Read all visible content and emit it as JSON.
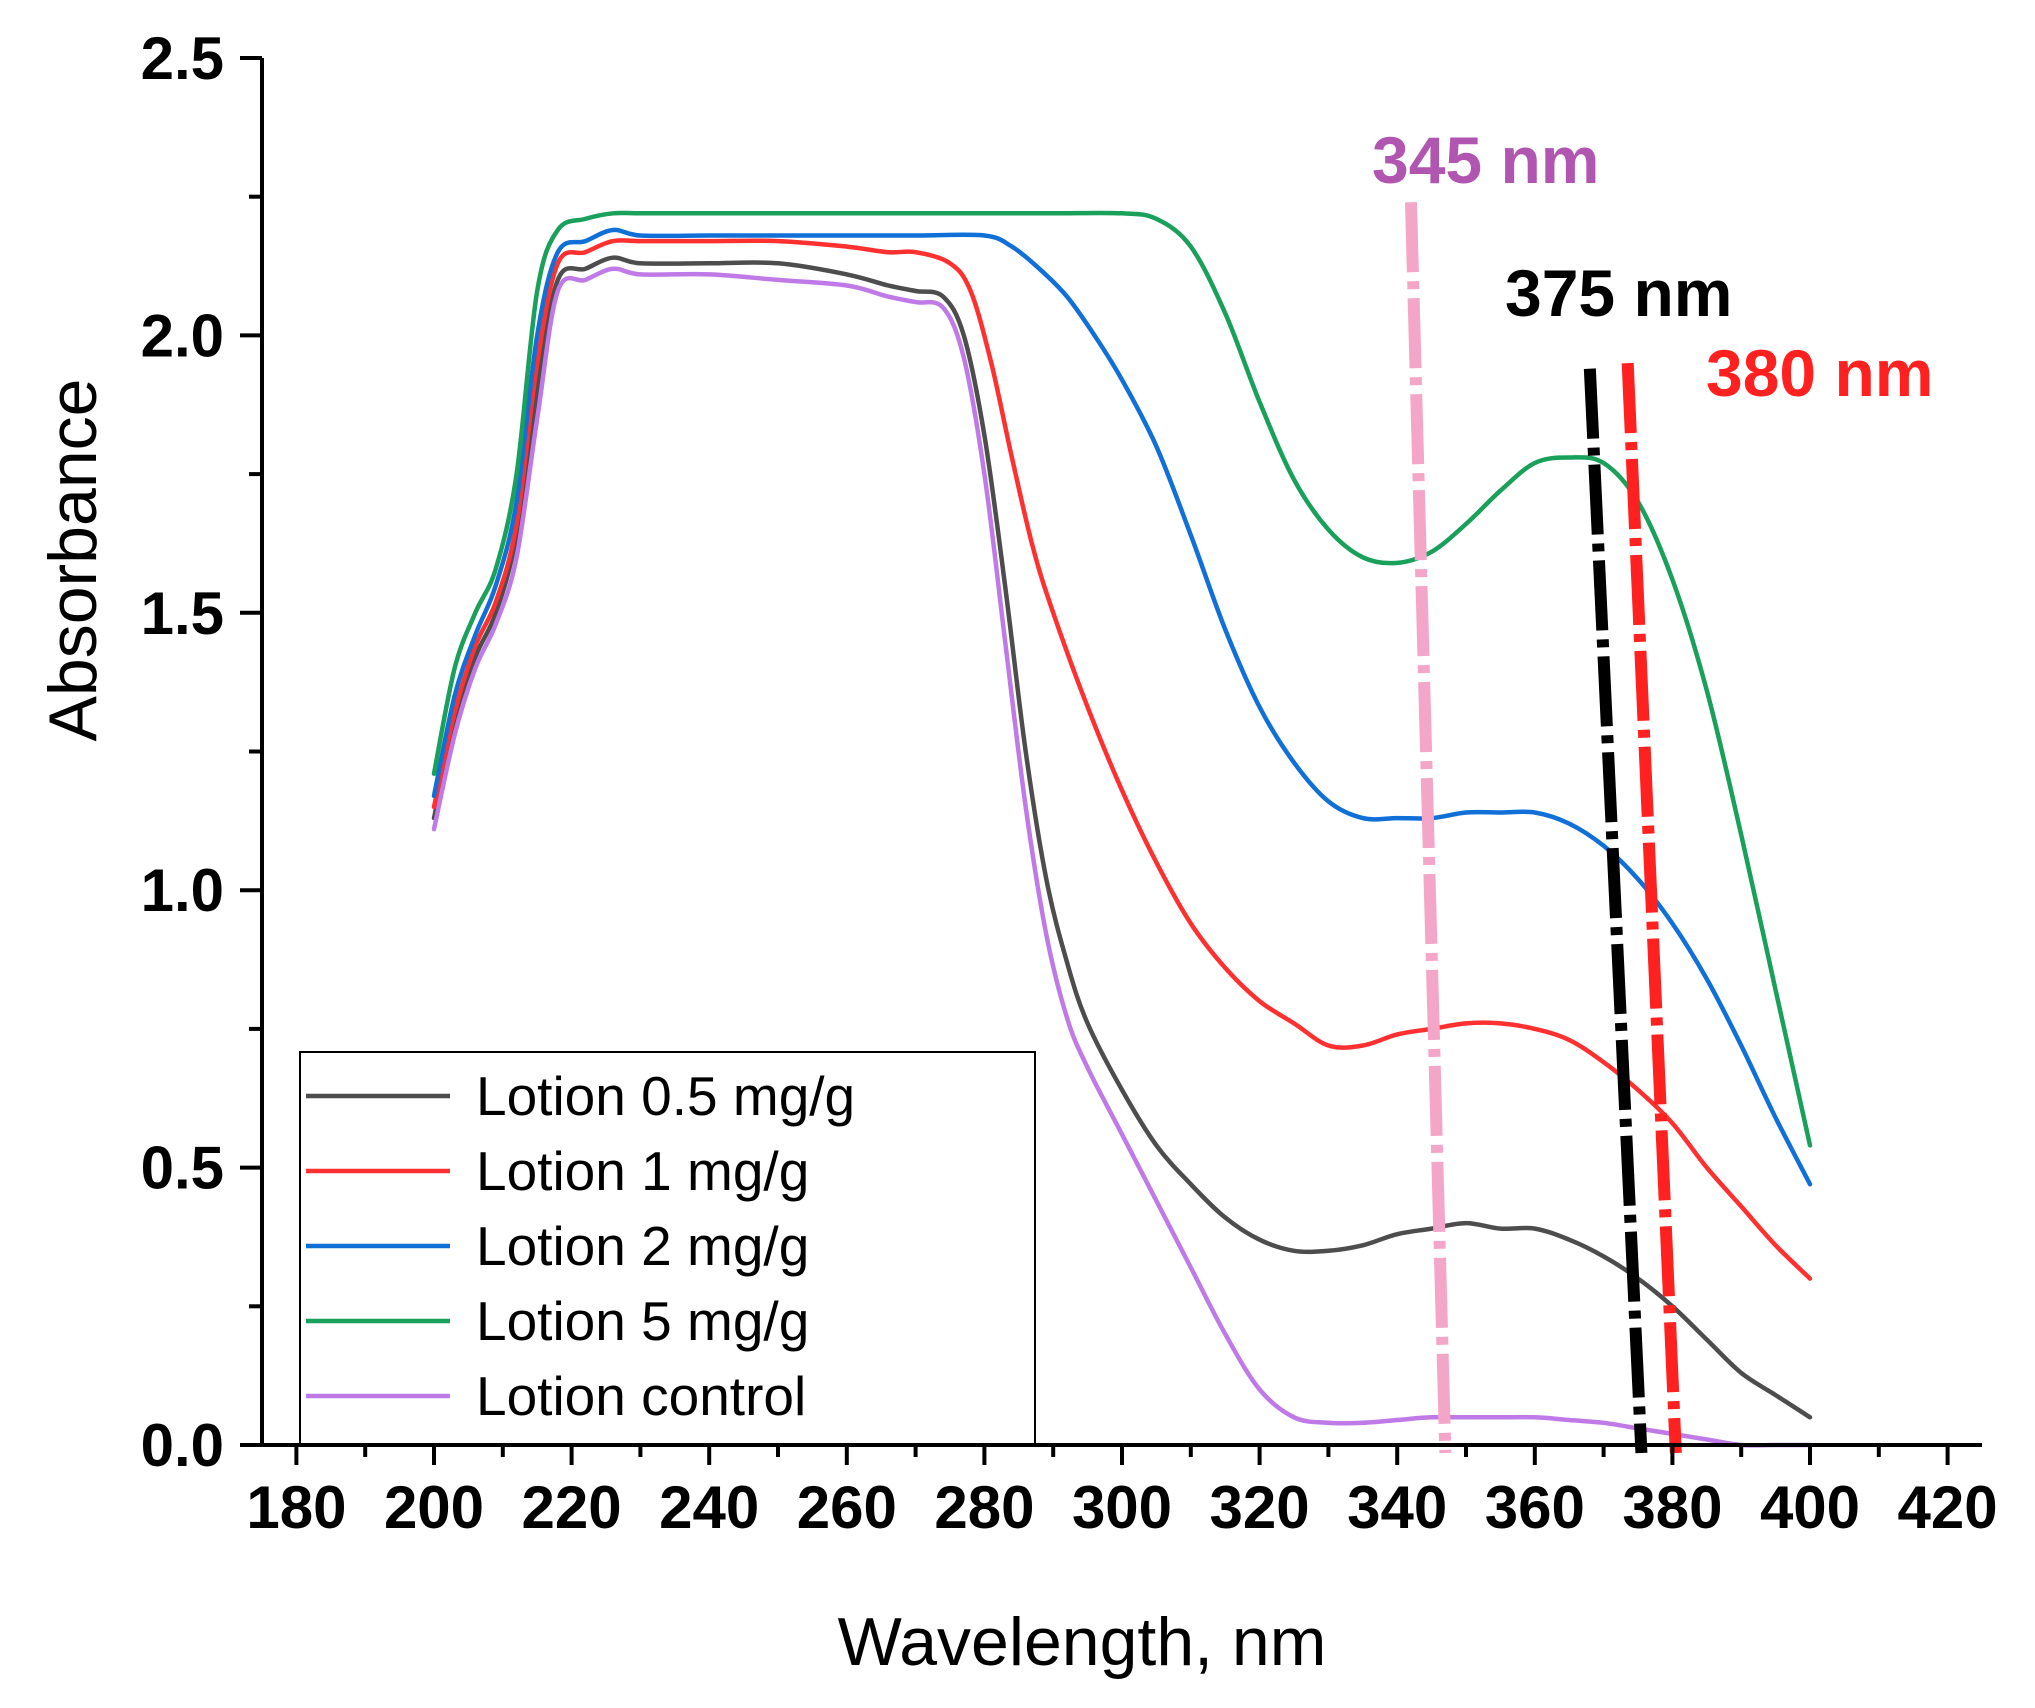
{
  "chart_data": {
    "type": "line",
    "xlabel": "Wavelength, nm",
    "ylabel": "Absorbance",
    "xlim": [
      175,
      425
    ],
    "ylim": [
      0,
      2.5
    ],
    "x_ticks": [
      180,
      200,
      220,
      240,
      260,
      280,
      300,
      320,
      340,
      360,
      380,
      400,
      420
    ],
    "y_ticks": [
      0.0,
      0.5,
      1.0,
      1.5,
      2.0,
      2.5
    ],
    "y_tick_labels": [
      "0.0",
      "0.5",
      "1.0",
      "1.5",
      "2.0",
      "2.5"
    ],
    "legend_position": "bottom-left",
    "series": [
      {
        "name": "Lotion 0.5 mg/g",
        "color": "#4d4d4d",
        "x": [
          200,
          203,
          206,
          209,
          212,
          215,
          218,
          222,
          226,
          230,
          240,
          250,
          260,
          266,
          270,
          274,
          277,
          280,
          283,
          286,
          289,
          292,
          295,
          300,
          305,
          310,
          315,
          320,
          325,
          330,
          335,
          340,
          345,
          350,
          355,
          360,
          365,
          370,
          375,
          380,
          385,
          390,
          395,
          400
        ],
        "y": [
          1.13,
          1.3,
          1.42,
          1.5,
          1.64,
          1.9,
          2.1,
          2.12,
          2.14,
          2.13,
          2.13,
          2.13,
          2.11,
          2.09,
          2.08,
          2.07,
          2.0,
          1.82,
          1.55,
          1.25,
          1.02,
          0.87,
          0.76,
          0.64,
          0.54,
          0.47,
          0.41,
          0.37,
          0.35,
          0.35,
          0.36,
          0.38,
          0.39,
          0.4,
          0.39,
          0.39,
          0.37,
          0.34,
          0.3,
          0.25,
          0.19,
          0.13,
          0.09,
          0.05
        ]
      },
      {
        "name": "Lotion 1 mg/g",
        "color": "#ff3030",
        "x": [
          200,
          203,
          206,
          209,
          212,
          215,
          218,
          222,
          226,
          230,
          240,
          250,
          260,
          266,
          270,
          275,
          278,
          281,
          284,
          287,
          290,
          295,
          300,
          305,
          310,
          315,
          320,
          325,
          330,
          335,
          340,
          345,
          350,
          355,
          360,
          365,
          370,
          375,
          380,
          385,
          390,
          395,
          400
        ],
        "y": [
          1.15,
          1.32,
          1.44,
          1.52,
          1.66,
          1.95,
          2.13,
          2.15,
          2.17,
          2.17,
          2.17,
          2.17,
          2.16,
          2.15,
          2.15,
          2.13,
          2.08,
          1.95,
          1.78,
          1.62,
          1.5,
          1.33,
          1.18,
          1.05,
          0.94,
          0.86,
          0.8,
          0.76,
          0.72,
          0.72,
          0.74,
          0.75,
          0.76,
          0.76,
          0.75,
          0.73,
          0.69,
          0.64,
          0.58,
          0.5,
          0.43,
          0.36,
          0.3
        ]
      },
      {
        "name": "Lotion 2 mg/g",
        "color": "#1070d8",
        "x": [
          200,
          203,
          206,
          209,
          212,
          215,
          218,
          222,
          226,
          230,
          240,
          250,
          260,
          270,
          280,
          284,
          288,
          292,
          296,
          300,
          305,
          310,
          315,
          320,
          325,
          330,
          335,
          340,
          345,
          350,
          355,
          360,
          365,
          370,
          375,
          380,
          385,
          390,
          395,
          400
        ],
        "y": [
          1.17,
          1.35,
          1.46,
          1.55,
          1.7,
          2.0,
          2.15,
          2.17,
          2.19,
          2.18,
          2.18,
          2.18,
          2.18,
          2.18,
          2.18,
          2.16,
          2.12,
          2.07,
          2.0,
          1.92,
          1.8,
          1.64,
          1.47,
          1.33,
          1.23,
          1.16,
          1.13,
          1.13,
          1.13,
          1.14,
          1.14,
          1.14,
          1.12,
          1.08,
          1.02,
          0.94,
          0.84,
          0.72,
          0.59,
          0.47
        ]
      },
      {
        "name": "Lotion 5 mg/g",
        "color": "#19a05a",
        "x": [
          200,
          203,
          206,
          209,
          212,
          215,
          218,
          222,
          226,
          230,
          240,
          250,
          260,
          270,
          280,
          290,
          300,
          305,
          310,
          315,
          320,
          325,
          330,
          335,
          340,
          345,
          350,
          355,
          360,
          365,
          370,
          375,
          380,
          385,
          390,
          395,
          400
        ],
        "y": [
          1.21,
          1.4,
          1.5,
          1.58,
          1.75,
          2.08,
          2.19,
          2.21,
          2.22,
          2.22,
          2.22,
          2.22,
          2.22,
          2.22,
          2.22,
          2.22,
          2.22,
          2.21,
          2.16,
          2.04,
          1.88,
          1.74,
          1.65,
          1.6,
          1.59,
          1.61,
          1.66,
          1.72,
          1.77,
          1.78,
          1.77,
          1.7,
          1.56,
          1.36,
          1.1,
          0.82,
          0.54
        ]
      },
      {
        "name": "Lotion control",
        "color": "#c07ae8",
        "x": [
          200,
          203,
          206,
          209,
          212,
          215,
          218,
          222,
          226,
          230,
          240,
          250,
          260,
          266,
          270,
          274,
          277,
          280,
          283,
          286,
          289,
          292,
          295,
          300,
          305,
          310,
          315,
          320,
          325,
          330,
          335,
          340,
          345,
          350,
          355,
          360,
          365,
          370,
          375,
          380,
          385,
          390,
          395,
          400
        ],
        "y": [
          1.11,
          1.28,
          1.4,
          1.48,
          1.6,
          1.85,
          2.08,
          2.1,
          2.12,
          2.11,
          2.11,
          2.1,
          2.09,
          2.07,
          2.06,
          2.05,
          1.96,
          1.75,
          1.45,
          1.15,
          0.92,
          0.77,
          0.68,
          0.56,
          0.44,
          0.32,
          0.2,
          0.1,
          0.05,
          0.04,
          0.04,
          0.045,
          0.05,
          0.05,
          0.05,
          0.05,
          0.045,
          0.04,
          0.03,
          0.02,
          0.01,
          0.0,
          0.0,
          0.0
        ]
      }
    ],
    "annotations": [
      {
        "text": "345 nm",
        "x": 345,
        "color": "#b055b0",
        "line_color": "#f4a6c8"
      },
      {
        "text": "375 nm",
        "x": 375,
        "color": "#000000",
        "line_color": "#000000"
      },
      {
        "text": "380 nm",
        "x": 380,
        "color": "#ff2020",
        "line_color": "#ff2020"
      }
    ]
  }
}
